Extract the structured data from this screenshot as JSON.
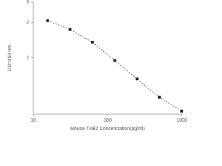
{
  "chart_data": {
    "type": "scatter",
    "x_label": "Mouse TXB2 Concentration(pg/ml)",
    "y_label": "OD=450 nm",
    "x": [
      15.6,
      31.25,
      62.5,
      125,
      250,
      500,
      1000
    ],
    "series": [
      {
        "values": [
          2.08,
          1.75,
          1.36,
          0.95,
          0.66,
          0.46,
          0.35
        ],
        "color": "#222222"
      }
    ],
    "x_log": true,
    "y_log": true,
    "xlim": [
      10,
      1000
    ],
    "ylim": [
      0.33,
      3
    ],
    "xticks": [
      10,
      100,
      1000
    ],
    "yticks": [
      1,
      2,
      3
    ],
    "line_style": "dashed"
  }
}
